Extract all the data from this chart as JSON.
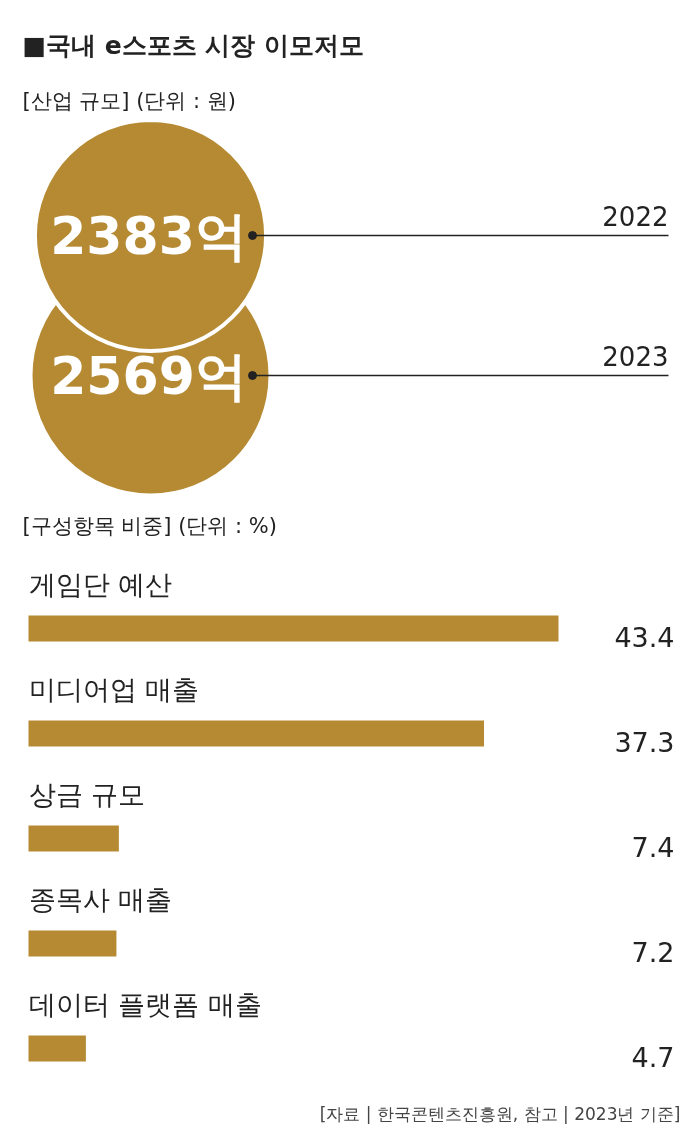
{
  "chart_data": [
    {
      "type": "other",
      "title": "■국내 e스포츠 시장 이모저모",
      "subtitle": "[산업 규모] (단위 : 원)",
      "categories": [
        "2022",
        "2023"
      ],
      "values": [
        2383,
        2569
      ],
      "value_labels": [
        "2383억",
        "2569억"
      ],
      "colors": [
        "#b58a33",
        "#b58a33"
      ]
    },
    {
      "type": "bar",
      "orientation": "horizontal",
      "title": "[구성항목 비중] (단위 : %)",
      "categories": [
        "게임단 예산",
        "미디어업 매출",
        "상금 규모",
        "종목사 매출",
        "데이터 플랫폼 매출"
      ],
      "values": [
        43.4,
        37.3,
        7.4,
        7.2,
        4.7
      ],
      "color": "#b58a33",
      "data_labels": true,
      "annotations": [
        "[자료 | 한국콘텐츠진흥원, 참고 | 2023년 기준]"
      ]
    }
  ]
}
